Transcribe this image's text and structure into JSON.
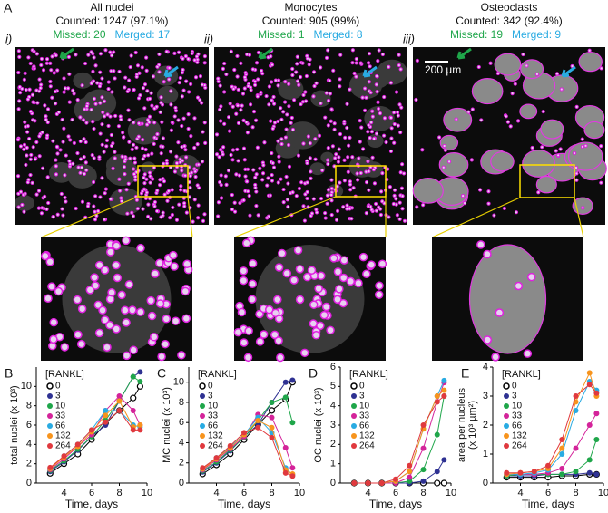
{
  "figure_label": "A",
  "scale_bar": "200 µm",
  "panels": [
    {
      "roman": "i)",
      "title": "All nuclei",
      "counted": "Counted: 1247 (97.1%)",
      "missed": "Missed: 20",
      "merged": "Merged: 17"
    },
    {
      "roman": "ii)",
      "title": "Monocytes",
      "counted": "Counted: 905 (99%)",
      "missed": "Missed: 1",
      "merged": "Merged: 8"
    },
    {
      "roman": "iii)",
      "title": "Osteoclasts",
      "counted": "Counted: 342 (92.4%)",
      "missed": "Missed: 19",
      "merged": "Merged: 9"
    }
  ],
  "chart_data": [
    {
      "type": "line",
      "label": "B",
      "ylabel": [
        "total nuclei (x 10³)"
      ],
      "xlabel": "Time, days",
      "legend_title": "[RANKL]",
      "x": [
        3,
        4,
        5,
        6,
        7,
        8,
        9,
        9.5
      ],
      "xlim": [
        2,
        10
      ],
      "xticks": [
        4,
        6,
        8,
        10
      ],
      "ylim": [
        0,
        12
      ],
      "yticks": [
        0,
        2,
        4,
        6,
        8,
        10
      ],
      "series": [
        {
          "name": "0",
          "color": "#ffffff",
          "values": [
            1.0,
            2.0,
            3.0,
            4.5,
            6.2,
            7.5,
            8.8,
            10.0
          ]
        },
        {
          "name": "3",
          "color": "#2e3192",
          "values": [
            1.2,
            2.2,
            3.4,
            4.8,
            6.0,
            8.5,
            11.0,
            11.5
          ]
        },
        {
          "name": "10",
          "color": "#1fa64a",
          "values": [
            1.3,
            2.3,
            3.5,
            4.8,
            6.5,
            8.5,
            11.0,
            10.5
          ]
        },
        {
          "name": "33",
          "color": "#d4239a",
          "values": [
            1.4,
            2.5,
            3.8,
            5.0,
            7.5,
            9.0,
            7.5,
            6.0
          ]
        },
        {
          "name": "66",
          "color": "#29abe2",
          "values": [
            1.5,
            2.8,
            4.0,
            5.5,
            7.5,
            7.5,
            6.0,
            5.8
          ]
        },
        {
          "name": "132",
          "color": "#f7941d",
          "values": [
            1.5,
            2.7,
            3.8,
            5.3,
            7.0,
            8.5,
            5.8,
            6.0
          ]
        },
        {
          "name": "264",
          "color": "#e0393e",
          "values": [
            1.6,
            2.8,
            4.0,
            5.5,
            6.3,
            7.5,
            5.5,
            5.5
          ]
        }
      ]
    },
    {
      "type": "line",
      "label": "C",
      "ylabel": [
        "MC nuclei (x 10³)"
      ],
      "xlabel": "Time, days",
      "legend_title": "[RANKL]",
      "x": [
        3,
        4,
        5,
        6,
        7,
        8,
        9,
        9.5
      ],
      "xlim": [
        2,
        10
      ],
      "xticks": [
        4,
        6,
        8,
        10
      ],
      "ylim": [
        0,
        11.5
      ],
      "yticks": [
        0,
        2,
        4,
        6,
        8,
        10
      ],
      "series": [
        {
          "name": "0",
          "color": "#ffffff",
          "values": [
            0.9,
            1.8,
            2.9,
            4.3,
            5.8,
            7.2,
            8.3,
            10.0
          ]
        },
        {
          "name": "3",
          "color": "#2e3192",
          "values": [
            1.1,
            2.0,
            3.2,
            4.6,
            5.8,
            8.0,
            10.0,
            10.2
          ]
        },
        {
          "name": "10",
          "color": "#1fa64a",
          "values": [
            1.2,
            2.1,
            3.3,
            4.5,
            6.2,
            8.0,
            8.5,
            6.0
          ]
        },
        {
          "name": "33",
          "color": "#d4239a",
          "values": [
            1.3,
            2.3,
            3.4,
            4.6,
            6.8,
            6.5,
            3.5,
            1.5
          ]
        },
        {
          "name": "66",
          "color": "#29abe2",
          "values": [
            1.4,
            2.5,
            3.6,
            4.8,
            6.5,
            5.0,
            1.5,
            0.8
          ]
        },
        {
          "name": "132",
          "color": "#f7941d",
          "values": [
            1.4,
            2.4,
            3.5,
            4.8,
            6.2,
            5.5,
            1.3,
            0.9
          ]
        },
        {
          "name": "264",
          "color": "#e0393e",
          "values": [
            1.5,
            2.5,
            3.7,
            5.0,
            5.5,
            4.5,
            1.0,
            0.7
          ]
        }
      ]
    },
    {
      "type": "line",
      "label": "D",
      "ylabel": [
        "OC nuclei (x 10³)"
      ],
      "xlabel": "Time, days",
      "legend_title": "[RANKL]",
      "x": [
        3,
        4,
        5,
        6,
        7,
        8,
        9,
        9.5
      ],
      "xlim": [
        2,
        10
      ],
      "xticks": [
        4,
        6,
        8,
        10
      ],
      "ylim": [
        0,
        6
      ],
      "yticks": [
        0,
        1,
        2,
        3,
        4,
        5,
        6
      ],
      "series": [
        {
          "name": "0",
          "color": "#ffffff",
          "values": [
            0,
            0,
            0,
            0,
            0,
            0,
            0,
            0
          ]
        },
        {
          "name": "3",
          "color": "#2e3192",
          "values": [
            0,
            0,
            0,
            0,
            0,
            0.1,
            0.6,
            1.2
          ]
        },
        {
          "name": "10",
          "color": "#1fa64a",
          "values": [
            0,
            0,
            0,
            0,
            0.1,
            0.7,
            2.5,
            4.5
          ]
        },
        {
          "name": "33",
          "color": "#d4239a",
          "values": [
            0,
            0,
            0,
            0,
            0.3,
            1.8,
            4.2,
            5.2
          ]
        },
        {
          "name": "66",
          "color": "#29abe2",
          "values": [
            0,
            0,
            0,
            0.1,
            0.6,
            2.8,
            4.5,
            5.3
          ]
        },
        {
          "name": "132",
          "color": "#f7941d",
          "values": [
            0,
            0,
            0,
            0.1,
            0.6,
            2.8,
            4.5,
            4.8
          ]
        },
        {
          "name": "264",
          "color": "#e0393e",
          "values": [
            0,
            0,
            0,
            0.2,
            0.9,
            3.0,
            4.2,
            4.5
          ]
        }
      ]
    },
    {
      "type": "line",
      "label": "E",
      "ylabel": [
        "area per nucleus",
        "(x 10³ µm²)"
      ],
      "xlabel": "Time, days",
      "legend_title": "[RANKL]",
      "x": [
        3,
        4,
        5,
        6,
        7,
        8,
        9,
        9.5
      ],
      "xlim": [
        2,
        10
      ],
      "xticks": [
        4,
        6,
        8,
        10
      ],
      "ylim": [
        0,
        4
      ],
      "yticks": [
        0,
        1,
        2,
        3,
        4
      ],
      "series": [
        {
          "name": "0",
          "color": "#ffffff",
          "values": [
            0.2,
            0.2,
            0.2,
            0.2,
            0.25,
            0.25,
            0.3,
            0.3
          ]
        },
        {
          "name": "3",
          "color": "#2e3192",
          "values": [
            0.25,
            0.25,
            0.25,
            0.3,
            0.3,
            0.3,
            0.35,
            0.3
          ]
        },
        {
          "name": "10",
          "color": "#1fa64a",
          "values": [
            0.25,
            0.3,
            0.3,
            0.3,
            0.3,
            0.4,
            0.8,
            1.5
          ]
        },
        {
          "name": "33",
          "color": "#d4239a",
          "values": [
            0.3,
            0.3,
            0.3,
            0.35,
            0.5,
            1.2,
            2.0,
            2.4
          ]
        },
        {
          "name": "66",
          "color": "#29abe2",
          "values": [
            0.3,
            0.3,
            0.35,
            0.45,
            1.0,
            2.5,
            3.5,
            3.2
          ]
        },
        {
          "name": "132",
          "color": "#f7941d",
          "values": [
            0.3,
            0.35,
            0.4,
            0.5,
            1.2,
            2.8,
            3.8,
            3.0
          ]
        },
        {
          "name": "264",
          "color": "#e0393e",
          "values": [
            0.35,
            0.35,
            0.4,
            0.6,
            1.5,
            3.0,
            3.4,
            3.1
          ]
        }
      ]
    }
  ]
}
